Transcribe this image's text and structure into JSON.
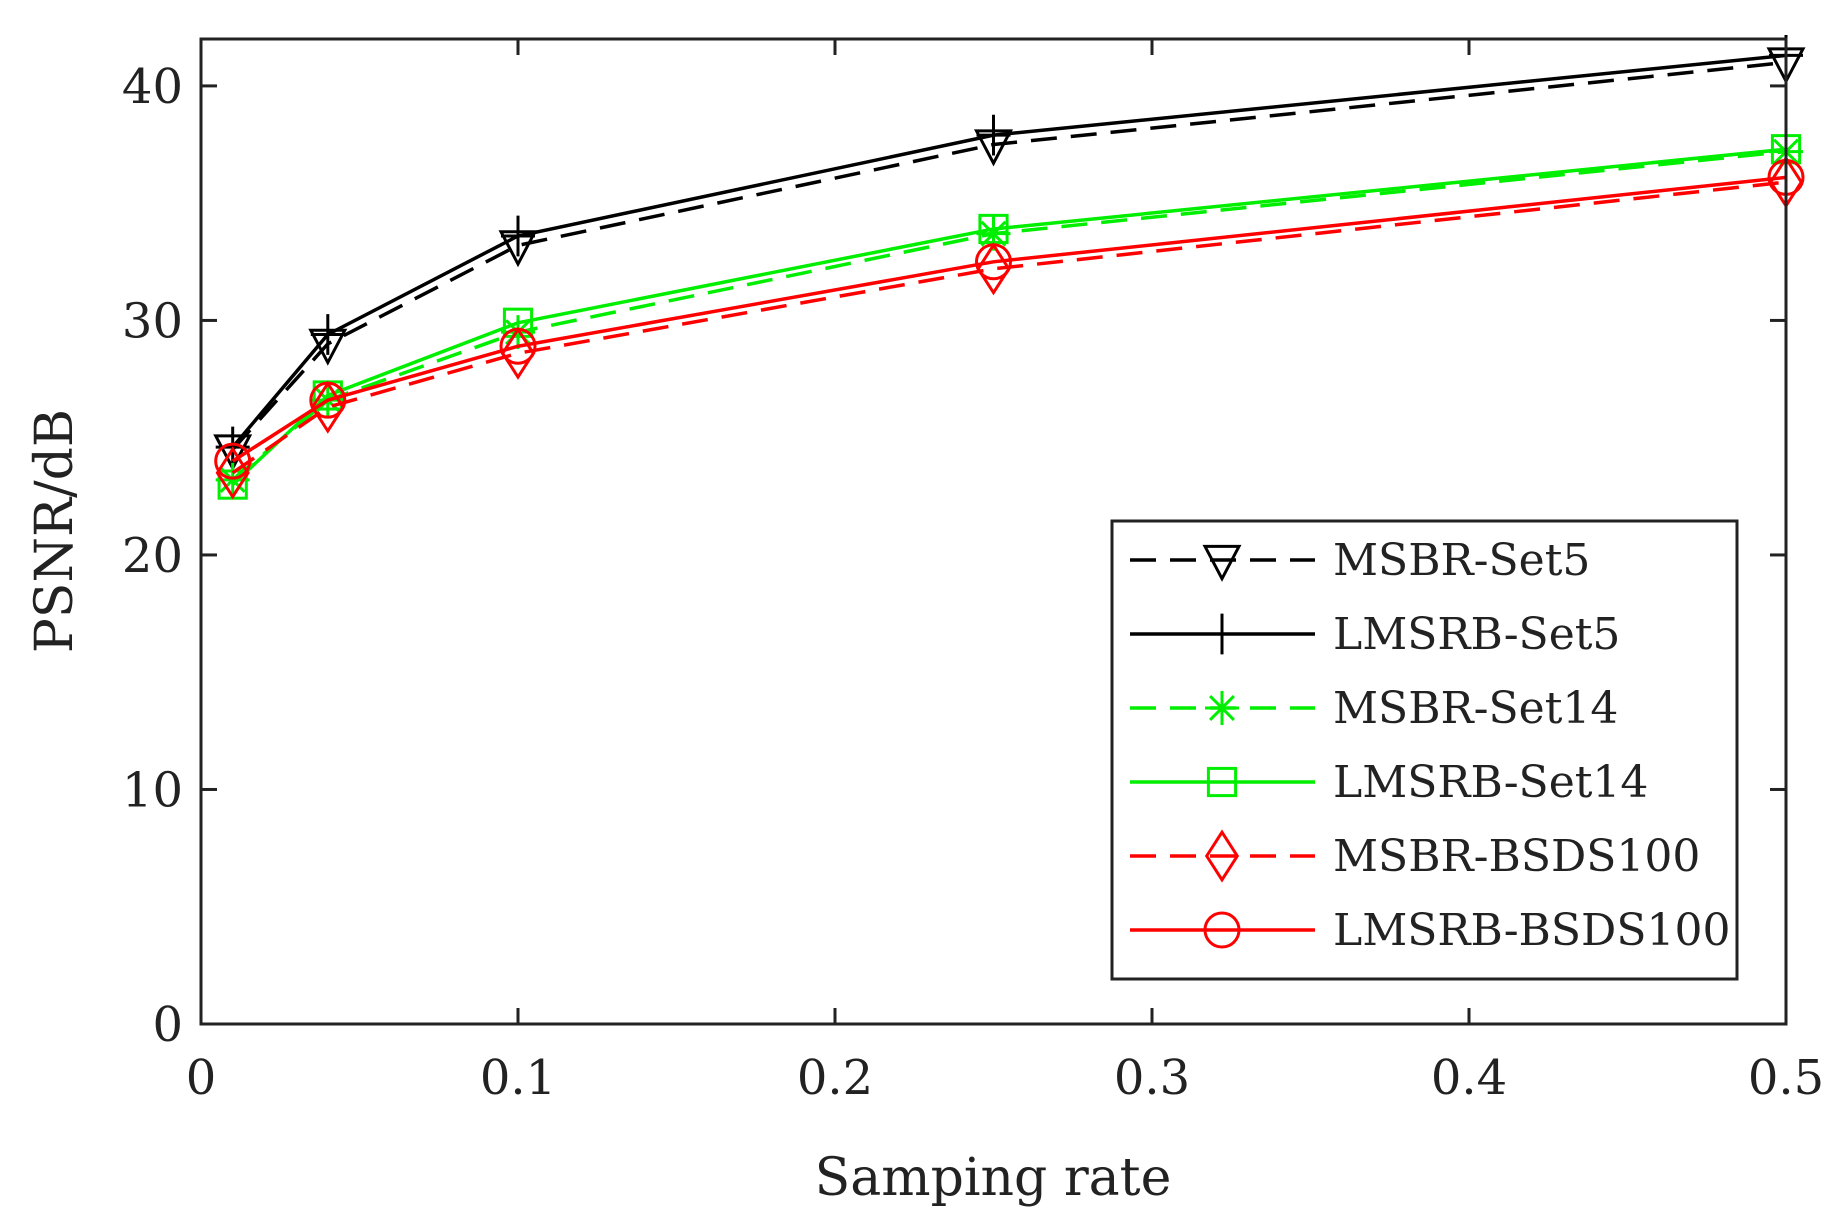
{
  "chart_data": {
    "type": "line",
    "title": "",
    "xlabel": "Samping rate",
    "ylabel": "PSNR/dB",
    "xlim": [
      0,
      0.5
    ],
    "ylim": [
      0,
      42
    ],
    "xticks": [
      "0",
      "0.1",
      "0.2",
      "0.3",
      "0.4",
      "0.5"
    ],
    "xtick_values": [
      0,
      0.1,
      0.2,
      0.3,
      0.4,
      0.5
    ],
    "yticks": [
      "0",
      "10",
      "20",
      "30",
      "40"
    ],
    "ytick_values": [
      0,
      10,
      20,
      30,
      40
    ],
    "grid": false,
    "legend_position": "bottom-right",
    "x": [
      0.01,
      0.04,
      0.1,
      0.25,
      0.5
    ],
    "series": [
      {
        "name": "MSBR-Set5",
        "color": "#000000",
        "dash": true,
        "marker": "triangle-down",
        "values": [
          24.5,
          29.0,
          33.2,
          37.5,
          41.0
        ]
      },
      {
        "name": "LMSRB-Set5",
        "color": "#000000",
        "dash": false,
        "marker": "plus",
        "values": [
          24.6,
          29.4,
          33.6,
          37.9,
          41.3
        ]
      },
      {
        "name": "MSBR-Set14",
        "color": "#00ee00",
        "dash": true,
        "marker": "asterisk",
        "values": [
          23.2,
          26.6,
          29.5,
          33.7,
          37.2
        ]
      },
      {
        "name": "LMSRB-Set14",
        "color": "#00ee00",
        "dash": false,
        "marker": "square",
        "values": [
          23.0,
          26.8,
          29.9,
          33.9,
          37.3
        ]
      },
      {
        "name": "MSBR-BSDS100",
        "color": "#ff0000",
        "dash": true,
        "marker": "diamond",
        "values": [
          23.5,
          26.3,
          28.6,
          32.2,
          35.9
        ]
      },
      {
        "name": "LMSRB-BSDS100",
        "color": "#ff0000",
        "dash": false,
        "marker": "circle",
        "values": [
          24.0,
          26.6,
          28.9,
          32.5,
          36.1
        ]
      }
    ]
  }
}
